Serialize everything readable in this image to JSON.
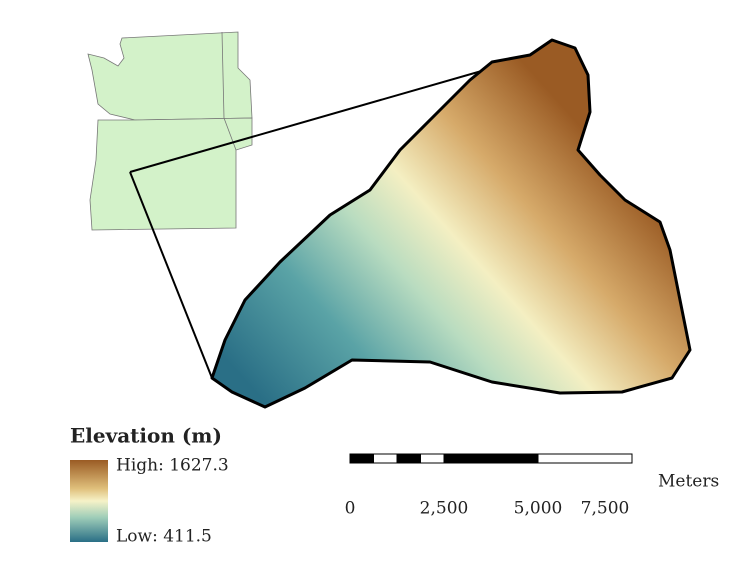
{
  "legend": {
    "title": "Elevation (m)",
    "high": "High: 1627.3",
    "low": "Low: 411.5"
  },
  "scale_bar": {
    "unit": "Meters",
    "ticks": [
      0,
      {
        "value": 2500,
        "label": "2,500"
      },
      {
        "value": 5000,
        "label": "5,000"
      },
      {
        "value": 7500,
        "label": "7,500"
      }
    ]
  }
}
